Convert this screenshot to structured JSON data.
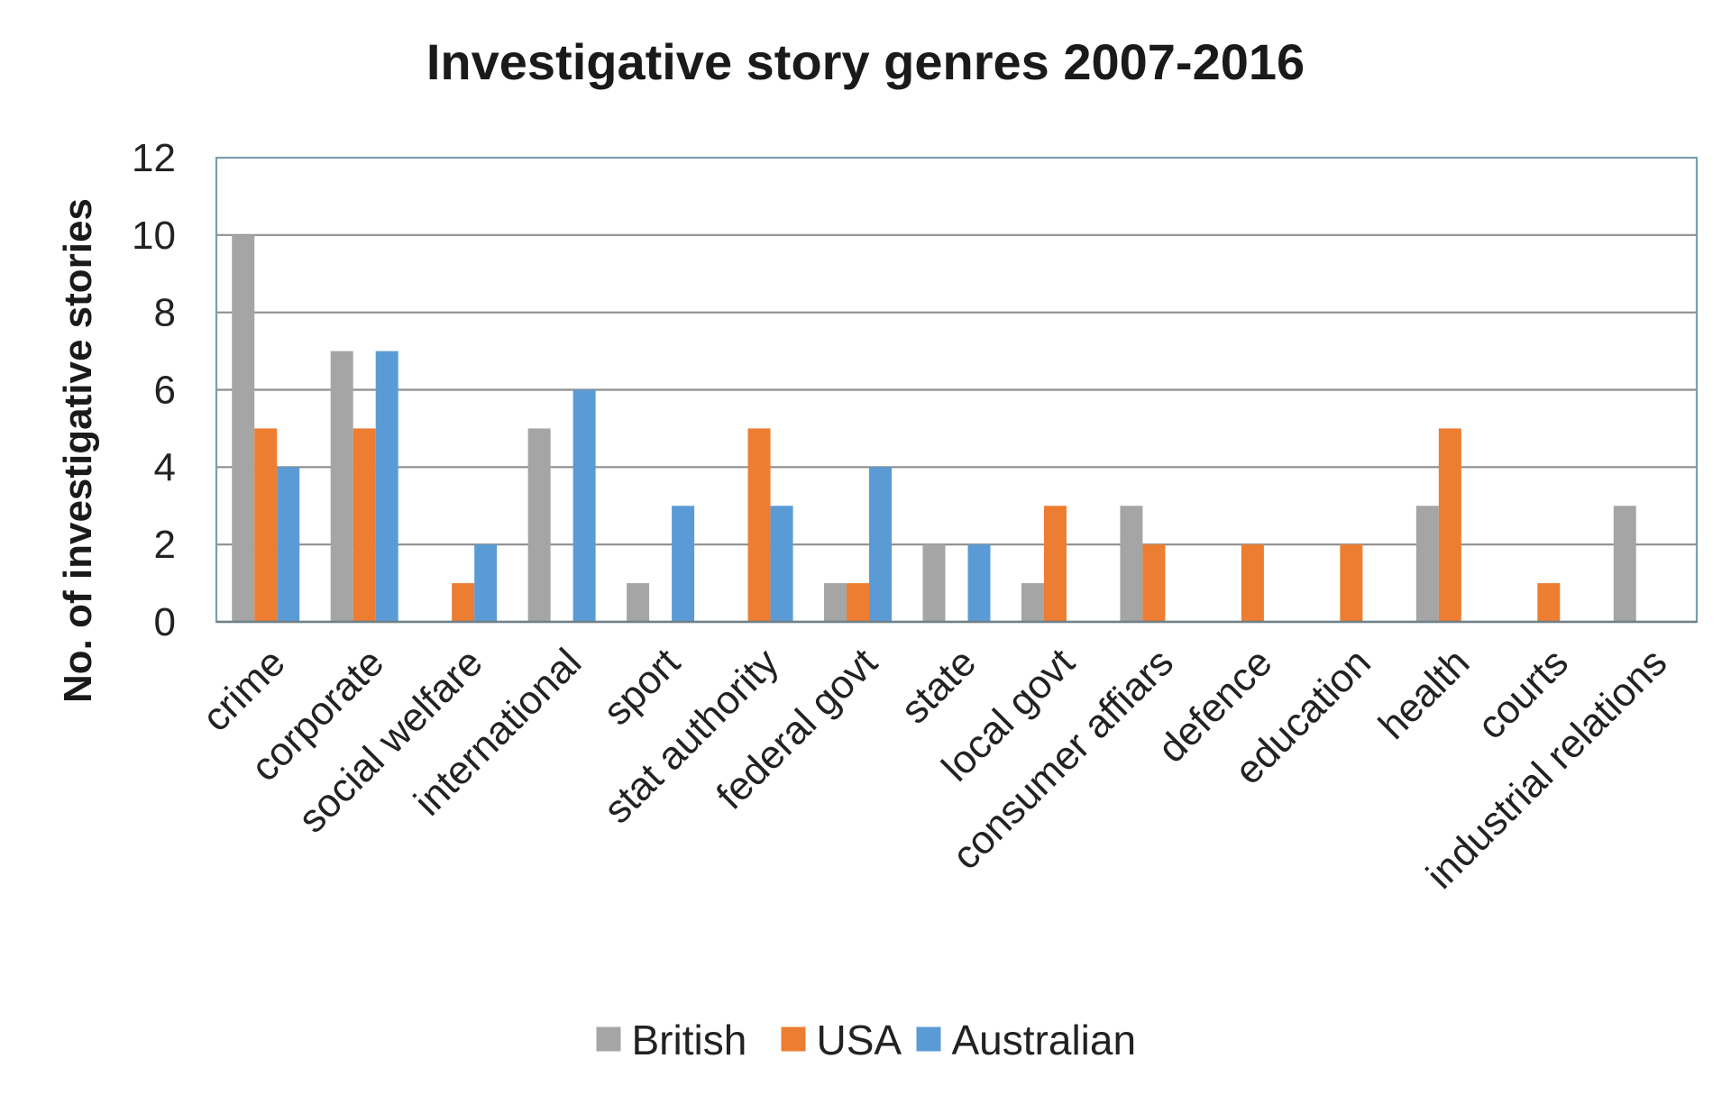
{
  "chart_data": {
    "type": "bar",
    "title": "Investigative story genres 2007-2016",
    "xlabel": "",
    "ylabel": "No. of investigative stories",
    "ylim": [
      0,
      12
    ],
    "yticks": [
      0,
      2,
      4,
      6,
      8,
      10,
      12
    ],
    "grid": true,
    "legend_position": "bottom",
    "categories": [
      "crime",
      "corporate",
      "social welfare",
      "international",
      "sport",
      "stat authority",
      "federal govt",
      "state",
      "local govt",
      "consumer affiars",
      "defence",
      "education",
      "health",
      "courts",
      "industrial relations"
    ],
    "series": [
      {
        "name": "British",
        "color": "#a5a5a5",
        "values": [
          10,
          7,
          0,
          5,
          1,
          0,
          1,
          2,
          1,
          3,
          0,
          0,
          3,
          0,
          3
        ]
      },
      {
        "name": "USA",
        "color": "#ed7d31",
        "values": [
          5,
          5,
          1,
          0,
          0,
          5,
          1,
          0,
          3,
          2,
          2,
          2,
          5,
          1,
          0
        ]
      },
      {
        "name": "Australian",
        "color": "#5b9bd5",
        "values": [
          4,
          7,
          2,
          6,
          3,
          3,
          4,
          2,
          0,
          0,
          0,
          0,
          0,
          0,
          0
        ]
      }
    ],
    "colors": {
      "gridline": "#8e8e8e",
      "plot_border": "#7a9fb0",
      "text": "#222222"
    }
  }
}
